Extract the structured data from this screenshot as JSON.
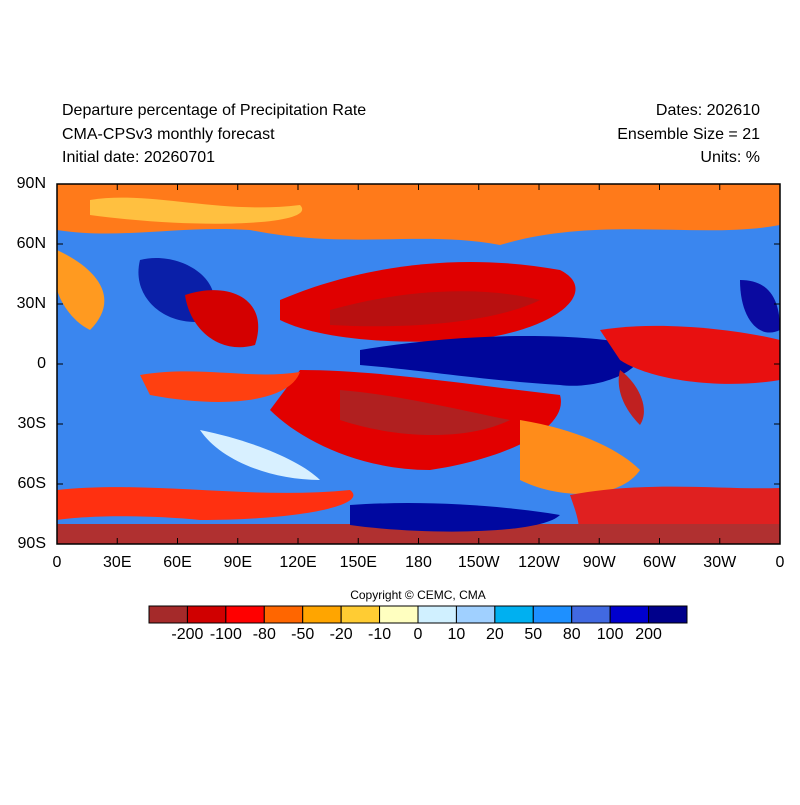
{
  "header": {
    "title": "Departure percentage of Precipitation Rate",
    "model": "CMA-CPSv3 monthly forecast",
    "initial_date": "Initial date: 20260701",
    "dates": "Dates: 202610",
    "ensemble": "Ensemble Size = 21",
    "units": "Units: %"
  },
  "map": {
    "xlim": [
      0,
      360
    ],
    "ylim": [
      -90,
      90
    ],
    "xticks": [
      0,
      {
        "value": 30,
        "label": "30E"
      },
      {
        "value": 60,
        "label": "60E"
      },
      {
        "value": 90,
        "label": "90E"
      },
      {
        "value": 120,
        "label": "120E"
      },
      {
        "value": 150,
        "label": "150E"
      },
      180,
      {
        "value": 210,
        "label": "150W"
      },
      {
        "value": 240,
        "label": "120W"
      },
      {
        "value": 270,
        "label": "90W"
      },
      {
        "value": 300,
        "label": "60W"
      },
      {
        "value": 330,
        "label": "30W"
      },
      {
        "value": 360,
        "label": "0"
      }
    ],
    "yticks": [
      {
        "value": 90,
        "label": "90N"
      },
      {
        "value": 60,
        "label": "60N"
      },
      {
        "value": 30,
        "label": "30N"
      },
      0,
      {
        "value": -30,
        "label": "30S"
      },
      {
        "value": -60,
        "label": "60S"
      },
      {
        "value": -90,
        "label": "90S"
      }
    ]
  },
  "copyright": "Copyright © CEMC, CMA",
  "colorbar": {
    "levels": [
      -200,
      -100,
      -80,
      -50,
      -20,
      -10,
      0,
      10,
      20,
      50,
      80,
      100,
      200
    ],
    "colors": [
      "#a52a2a",
      "#d00000",
      "#ff0000",
      "#ff6600",
      "#ffa500",
      "#ffcc33",
      "#ffffc0",
      "#d0f0ff",
      "#a0d0ff",
      "#00b0f0",
      "#1e90ff",
      "#4169e1",
      "#0000cd",
      "#00008b"
    ]
  }
}
